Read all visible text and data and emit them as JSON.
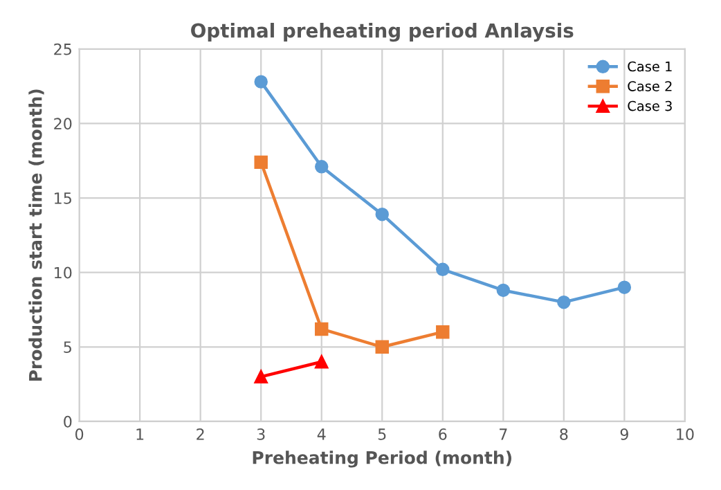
{
  "chart_data": {
    "type": "line",
    "title": "Optimal preheating period Anlaysis",
    "xlabel": "Preheating Period (month)",
    "ylabel": "Production start time (month)",
    "xlim": [
      0,
      10
    ],
    "xticks": [
      0,
      1,
      2,
      3,
      4,
      5,
      6,
      7,
      8,
      9,
      10
    ],
    "ylim": [
      0,
      25
    ],
    "yticks": [
      0,
      5,
      10,
      15,
      20,
      25
    ],
    "grid": true,
    "legend": "top right",
    "series": [
      {
        "name": "Case 1",
        "color": "#5b9bd5",
        "marker": "circle",
        "x": [
          3,
          4,
          5,
          6,
          7,
          8,
          9
        ],
        "values": [
          22.8,
          17.1,
          13.9,
          10.2,
          8.8,
          8.0,
          9.0
        ]
      },
      {
        "name": "Case 2",
        "color": "#ed7d31",
        "marker": "square",
        "x": [
          3,
          4,
          5,
          6
        ],
        "values": [
          17.4,
          6.2,
          5.0,
          6.0
        ]
      },
      {
        "name": "Case 3",
        "color": "#ff0000",
        "marker": "triangle",
        "x": [
          3,
          4
        ],
        "values": [
          3.0,
          4.0
        ]
      }
    ]
  }
}
